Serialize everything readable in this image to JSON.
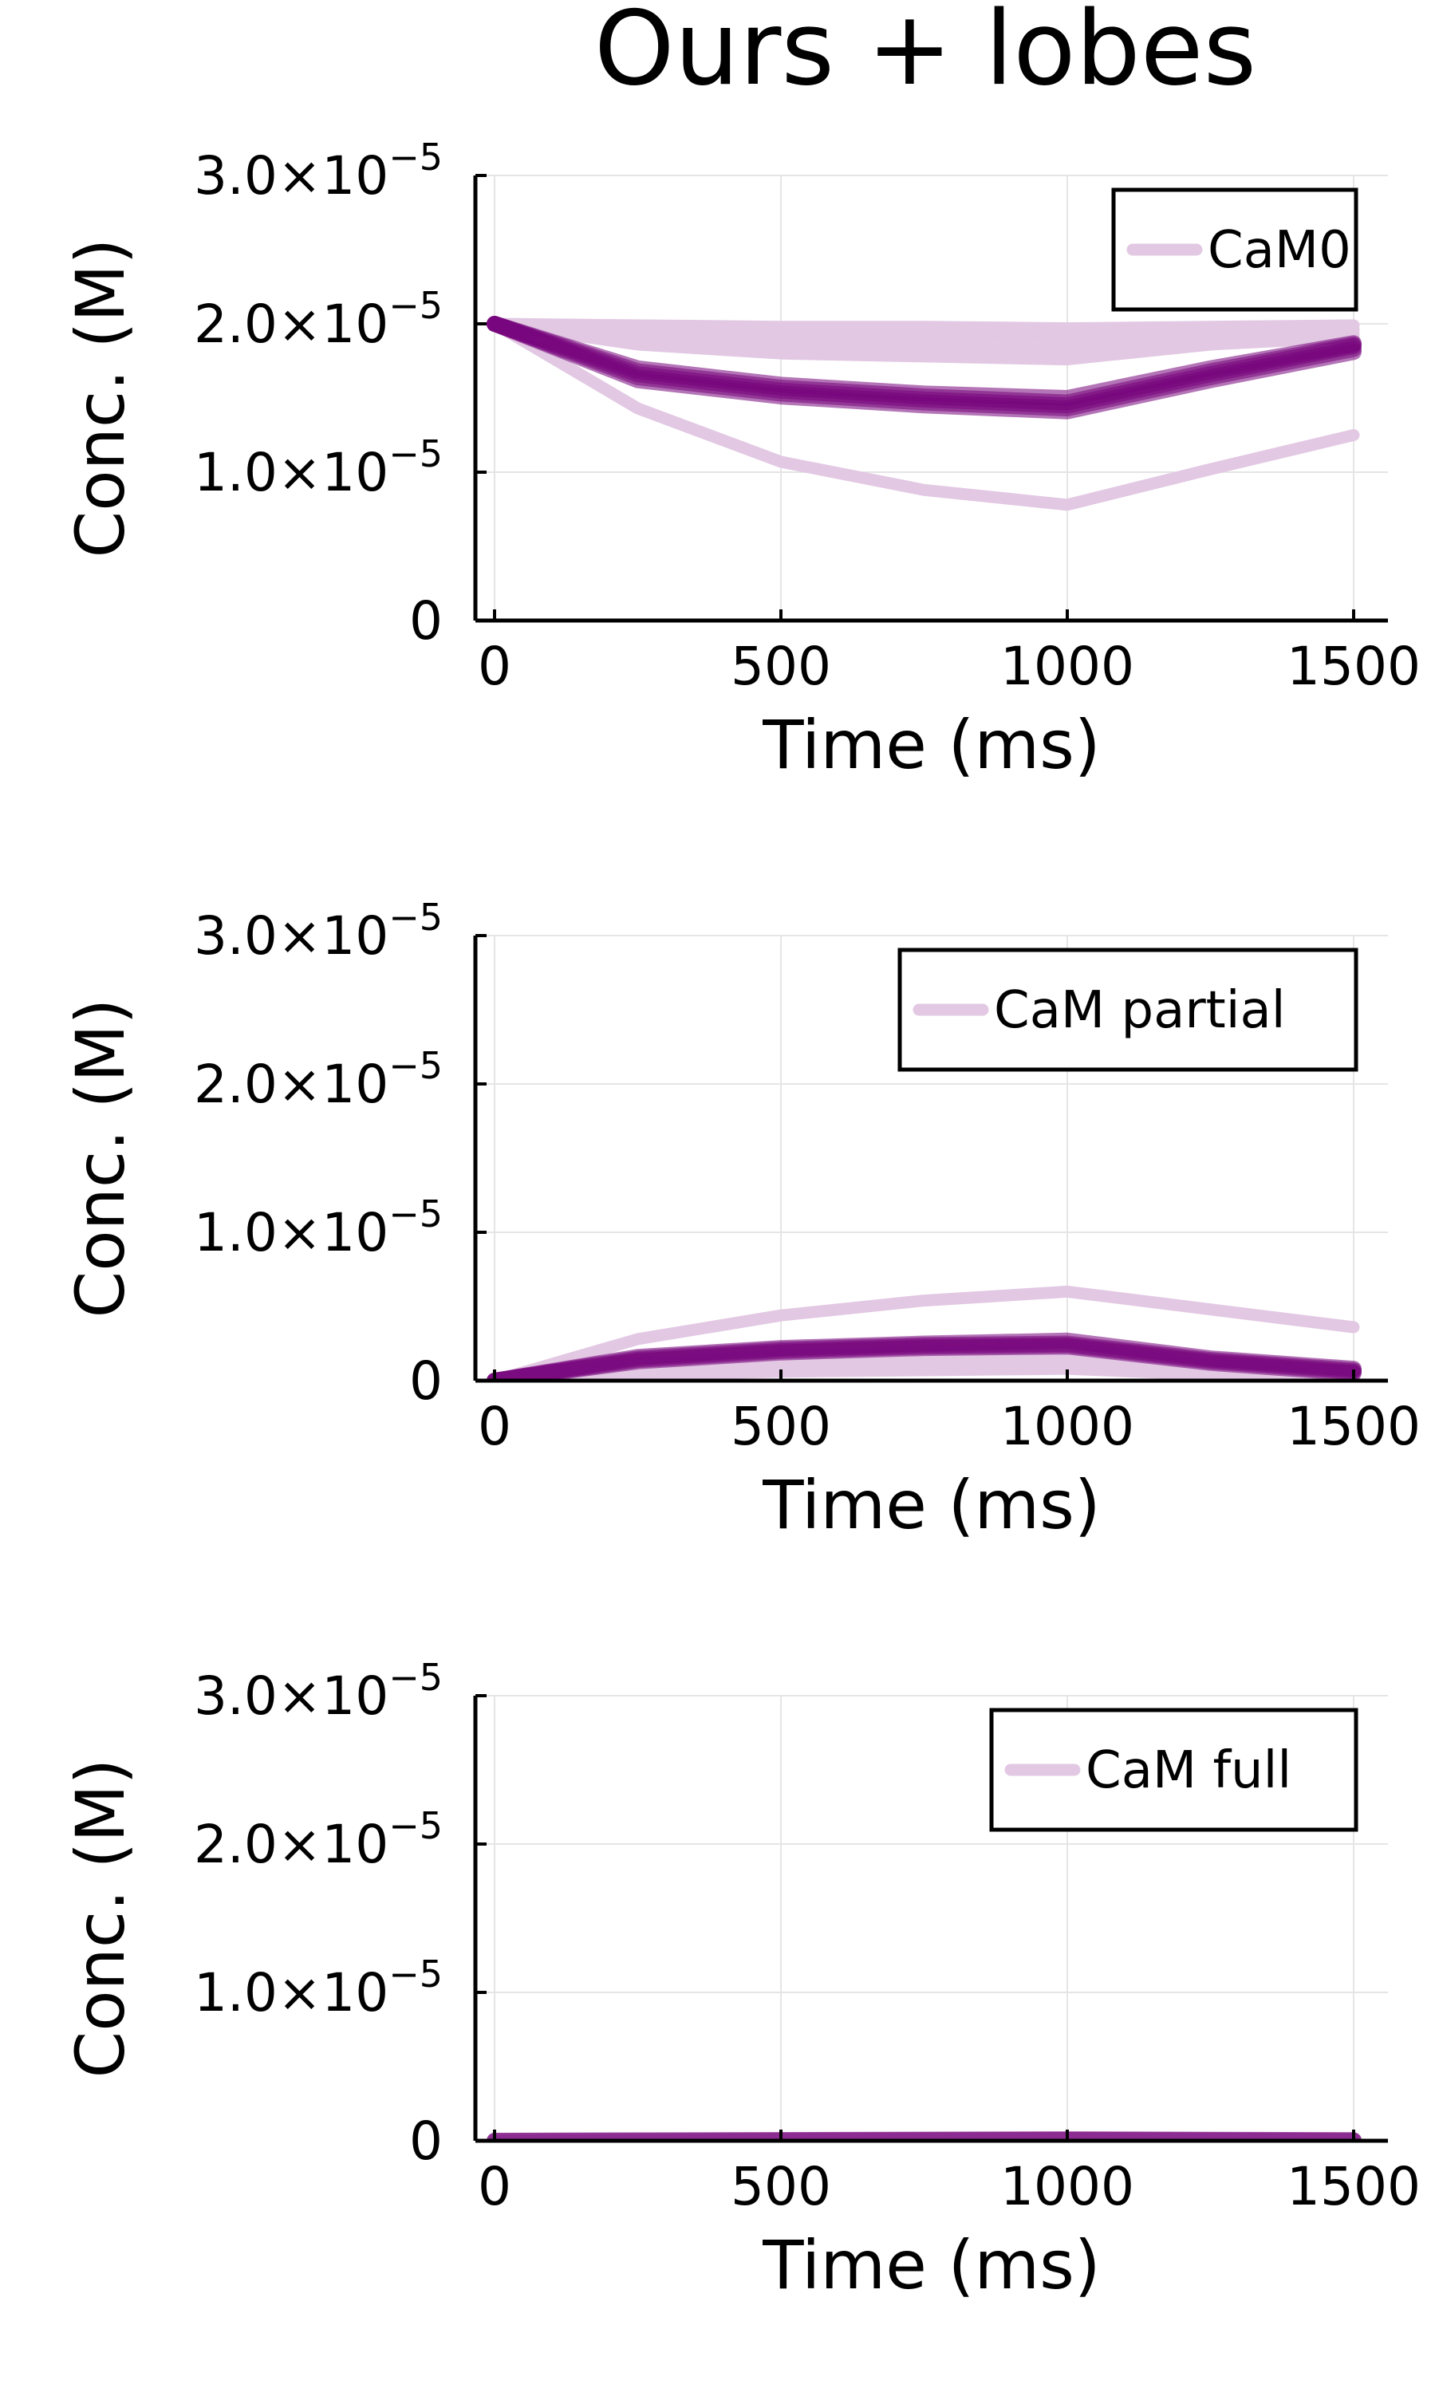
{
  "figure": {
    "title": "Ours + lobes"
  },
  "colors": {
    "dark": "#77037b",
    "light": "#e2c8e3",
    "grid": "#e5e5e5",
    "axis": "#000000"
  },
  "chart_data": [
    {
      "type": "line",
      "title": "",
      "xlabel": "Time (ms)",
      "ylabel": "Conc. (M)",
      "xlim": [
        0,
        1500
      ],
      "ylim": [
        0,
        3e-05
      ],
      "xticks": [
        {
          "value": 0,
          "label": "0"
        },
        {
          "value": 500,
          "label": "500"
        },
        {
          "value": 1000,
          "label": "1000"
        },
        {
          "value": 1500,
          "label": "1500"
        }
      ],
      "yticks": [
        {
          "value": 0,
          "mant": "0",
          "exp": ""
        },
        {
          "value": 1e-05,
          "mant": "1.0×10",
          "exp": "−5"
        },
        {
          "value": 2e-05,
          "mant": "2.0×10",
          "exp": "−5"
        },
        {
          "value": 3e-05,
          "mant": "3.0×10",
          "exp": "−5"
        }
      ],
      "grid": true,
      "legend": {
        "label": "CaM0",
        "position": "top-right"
      },
      "series": [
        {
          "style": "light",
          "x": [
            0,
            250,
            500,
            750,
            1000,
            1250,
            1500
          ],
          "y": [
            2e-05,
            1.43e-05,
            1.07e-05,
            8.8e-06,
            7.8e-06,
            1.02e-05,
            1.25e-05
          ]
        },
        {
          "style": "light",
          "x": [
            0,
            250,
            500,
            750,
            1000,
            1250,
            1500
          ],
          "y": [
            2e-05,
            1.99e-05,
            1.98e-05,
            1.98e-05,
            1.97e-05,
            1.98e-05,
            1.99e-05
          ]
        },
        {
          "style": "light",
          "x": [
            0,
            250,
            500,
            750,
            1000,
            1250,
            1500
          ],
          "y": [
            2e-05,
            1.95e-05,
            1.93e-05,
            1.92e-05,
            1.91e-05,
            1.94e-05,
            1.96e-05
          ]
        },
        {
          "style": "light",
          "x": [
            0,
            250,
            500,
            750,
            1000,
            1250,
            1500
          ],
          "y": [
            2e-05,
            1.9e-05,
            1.86e-05,
            1.84e-05,
            1.83e-05,
            1.89e-05,
            1.93e-05
          ]
        },
        {
          "style": "light",
          "x": [
            0,
            250,
            500,
            750,
            1000,
            1250,
            1500
          ],
          "y": [
            2e-05,
            1.86e-05,
            1.8e-05,
            1.78e-05,
            1.76e-05,
            1.86e-05,
            1.91e-05
          ]
        },
        {
          "style": "dark",
          "x": [
            0,
            250,
            500,
            750,
            1000,
            1250,
            1500
          ],
          "y": [
            2e-05,
            1.7e-05,
            1.59e-05,
            1.53e-05,
            1.5e-05,
            1.7e-05,
            1.87e-05
          ]
        },
        {
          "style": "dark",
          "x": [
            0,
            250,
            500,
            750,
            1000,
            1250,
            1500
          ],
          "y": [
            2e-05,
            1.68e-05,
            1.57e-05,
            1.51e-05,
            1.47e-05,
            1.68e-05,
            1.86e-05
          ]
        },
        {
          "style": "dark",
          "x": [
            0,
            250,
            500,
            750,
            1000,
            1250,
            1500
          ],
          "y": [
            2e-05,
            1.66e-05,
            1.55e-05,
            1.49e-05,
            1.45e-05,
            1.66e-05,
            1.85e-05
          ]
        },
        {
          "style": "dark",
          "x": [
            0,
            250,
            500,
            750,
            1000,
            1250,
            1500
          ],
          "y": [
            2e-05,
            1.64e-05,
            1.53e-05,
            1.47e-05,
            1.43e-05,
            1.64e-05,
            1.83e-05
          ]
        },
        {
          "style": "dark",
          "x": [
            0,
            250,
            500,
            750,
            1000,
            1250,
            1500
          ],
          "y": [
            2e-05,
            1.62e-05,
            1.51e-05,
            1.45e-05,
            1.41e-05,
            1.62e-05,
            1.81e-05
          ]
        }
      ]
    },
    {
      "type": "line",
      "title": "",
      "xlabel": "Time (ms)",
      "ylabel": "Conc. (M)",
      "xlim": [
        0,
        1500
      ],
      "ylim": [
        0,
        3e-05
      ],
      "xticks": [
        {
          "value": 0,
          "label": "0"
        },
        {
          "value": 500,
          "label": "500"
        },
        {
          "value": 1000,
          "label": "1000"
        },
        {
          "value": 1500,
          "label": "1500"
        }
      ],
      "yticks": [
        {
          "value": 0,
          "mant": "0",
          "exp": ""
        },
        {
          "value": 1e-05,
          "mant": "1.0×10",
          "exp": "−5"
        },
        {
          "value": 2e-05,
          "mant": "2.0×10",
          "exp": "−5"
        },
        {
          "value": 3e-05,
          "mant": "3.0×10",
          "exp": "−5"
        }
      ],
      "grid": true,
      "legend": {
        "label": "CaM partial",
        "position": "top-right"
      },
      "series": [
        {
          "style": "light",
          "x": [
            0,
            250,
            500,
            750,
            1000,
            1250,
            1500
          ],
          "y": [
            0,
            2.8e-06,
            4.4e-06,
            5.4e-06,
            6e-06,
            4.8e-06,
            3.6e-06
          ]
        },
        {
          "style": "light",
          "x": [
            0,
            250,
            500,
            750,
            1000,
            1250,
            1500
          ],
          "y": [
            0,
            4e-07,
            6e-07,
            7e-07,
            8e-07,
            4e-07,
            2e-07
          ]
        },
        {
          "style": "light",
          "x": [
            0,
            250,
            500,
            750,
            1000,
            1250,
            1500
          ],
          "y": [
            0,
            8e-07,
            1.2e-06,
            1.4e-06,
            1.5e-06,
            8e-07,
            4e-07
          ]
        },
        {
          "style": "light",
          "x": [
            0,
            250,
            500,
            750,
            1000,
            1250,
            1500
          ],
          "y": [
            0,
            1.2e-06,
            1.7e-06,
            2e-06,
            2.2e-06,
            1.1e-06,
            6e-07
          ]
        },
        {
          "style": "dark",
          "x": [
            0,
            250,
            500,
            750,
            1000,
            1250,
            1500
          ],
          "y": [
            0,
            1.6e-06,
            2.2e-06,
            2.5e-06,
            2.7e-06,
            1.5e-06,
            8e-07
          ]
        },
        {
          "style": "dark",
          "x": [
            0,
            250,
            500,
            750,
            1000,
            1250,
            1500
          ],
          "y": [
            0,
            1.5e-06,
            2.1e-06,
            2.4e-06,
            2.5e-06,
            1.4e-06,
            7e-07
          ]
        },
        {
          "style": "dark",
          "x": [
            0,
            250,
            500,
            750,
            1000,
            1250,
            1500
          ],
          "y": [
            0,
            1.4e-06,
            2e-06,
            2.3e-06,
            2.4e-06,
            1.3e-06,
            6e-07
          ]
        },
        {
          "style": "dark",
          "x": [
            0,
            250,
            500,
            750,
            1000,
            1250,
            1500
          ],
          "y": [
            0,
            1.3e-06,
            1.9e-06,
            2.2e-06,
            2.3e-06,
            1.2e-06,
            5e-07
          ]
        }
      ]
    },
    {
      "type": "line",
      "title": "",
      "xlabel": "Time (ms)",
      "ylabel": "Conc. (M)",
      "xlim": [
        0,
        1500
      ],
      "ylim": [
        0,
        3e-05
      ],
      "xticks": [
        {
          "value": 0,
          "label": "0"
        },
        {
          "value": 500,
          "label": "500"
        },
        {
          "value": 1000,
          "label": "1000"
        },
        {
          "value": 1500,
          "label": "1500"
        }
      ],
      "yticks": [
        {
          "value": 0,
          "mant": "0",
          "exp": ""
        },
        {
          "value": 1e-05,
          "mant": "1.0×10",
          "exp": "−5"
        },
        {
          "value": 2e-05,
          "mant": "2.0×10",
          "exp": "−5"
        },
        {
          "value": 3e-05,
          "mant": "3.0×10",
          "exp": "−5"
        }
      ],
      "grid": true,
      "legend": {
        "label": "CaM full",
        "position": "top-right"
      },
      "series": [
        {
          "style": "light",
          "x": [
            0,
            500,
            1000,
            1500
          ],
          "y": [
            0,
            1e-07,
            2e-07,
            1e-07
          ]
        },
        {
          "style": "dark",
          "x": [
            0,
            500,
            1000,
            1500
          ],
          "y": [
            0,
            5e-08,
            1e-07,
            4e-08
          ]
        },
        {
          "style": "dark",
          "x": [
            0,
            500,
            1000,
            1500
          ],
          "y": [
            0,
            3e-08,
            6e-08,
            2e-08
          ]
        }
      ]
    }
  ]
}
